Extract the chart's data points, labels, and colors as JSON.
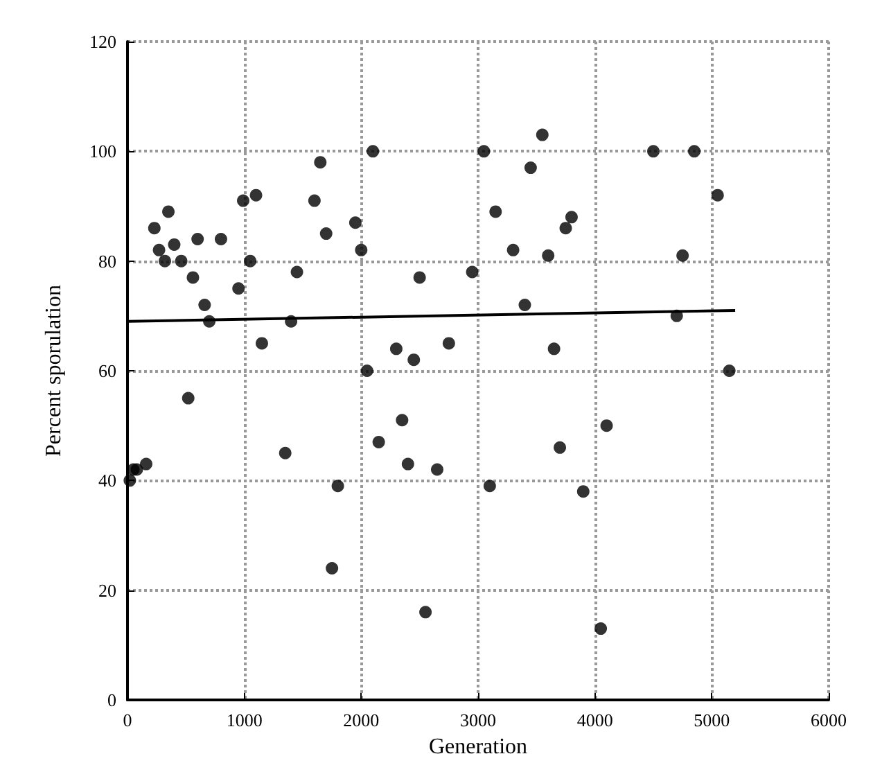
{
  "chart_data": {
    "type": "scatter",
    "xlabel": "Generation",
    "ylabel": "Percent sporulation",
    "xlim": [
      0,
      6000
    ],
    "ylim": [
      0,
      120
    ],
    "xticks": [
      0,
      1000,
      2000,
      3000,
      4000,
      5000,
      6000
    ],
    "yticks": [
      0,
      20,
      40,
      60,
      80,
      100,
      120
    ],
    "grid": true,
    "marker": "circle",
    "series": [
      {
        "color": "#000000",
        "x": [
          20,
          50,
          80,
          160,
          230,
          270,
          320,
          350,
          400,
          460,
          520,
          560,
          600,
          660,
          700,
          800,
          950,
          990,
          1050,
          1100,
          1150,
          1350,
          1400,
          1450,
          1600,
          1650,
          1700,
          1750,
          1800,
          1950,
          2000,
          2050,
          2100,
          2150,
          2300,
          2350,
          2400,
          2450,
          2500,
          2550,
          2650,
          2750,
          2950,
          3050,
          3100,
          3150,
          3300,
          3400,
          3450,
          3550,
          3600,
          3650,
          3700,
          3750,
          3800,
          3900,
          4050,
          4100,
          4500,
          4700,
          4750,
          4850,
          5050,
          5150
        ],
        "values": [
          40,
          42,
          42,
          43,
          86,
          82,
          80,
          89,
          83,
          80,
          55,
          77,
          84,
          72,
          69,
          84,
          75,
          91,
          80,
          92,
          65,
          45,
          69,
          78,
          91,
          98,
          85,
          24,
          39,
          87,
          82,
          60,
          100,
          47,
          64,
          51,
          43,
          62,
          77,
          16,
          42,
          65,
          78,
          100,
          39,
          89,
          82,
          72,
          97,
          103,
          81,
          64,
          46,
          86,
          88,
          38,
          13,
          50,
          100,
          70,
          81,
          100,
          92,
          60
        ]
      },
      {
        "type": "line",
        "marker": "none",
        "color": "#000000",
        "x": [
          0,
          5200
        ],
        "values": [
          69,
          71
        ]
      }
    ]
  }
}
